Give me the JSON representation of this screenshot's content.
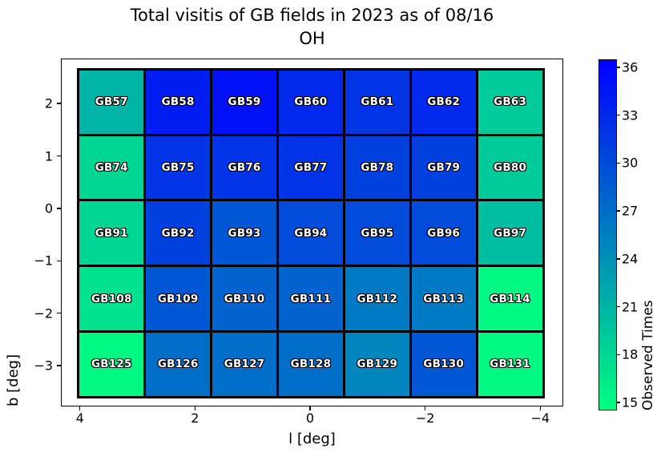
{
  "title": {
    "line1": "Total visitis of GB fields in 2023 as of 08/16",
    "line2": "OH"
  },
  "chart_data": {
    "type": "heatmap",
    "title": "Total visitis of GB fields in 2023 as of 08/16 OH",
    "xlabel": "l [deg]",
    "ylabel": "b [deg]",
    "colorbar_label": "Observed Times",
    "colormap": "winter_r",
    "vmin": 14.5,
    "vmax": 36.5,
    "accent_colors": {
      "cmap_top_blue": "#0000ff",
      "cmap_bottom_green": "#00ff80"
    },
    "xticks": [
      4,
      2,
      0,
      -2,
      -4
    ],
    "yticks": [
      2,
      1,
      0,
      -1,
      -2,
      -3
    ],
    "colorbar_ticks": [
      36,
      33,
      30,
      27,
      24,
      21,
      18,
      15
    ],
    "xlim": [
      4.33,
      -4.4
    ],
    "ylim": [
      2.86,
      -3.78
    ],
    "grid_extent": {
      "x": [
        4.04,
        -4.08
      ],
      "y": [
        2.67,
        -3.63
      ]
    },
    "legend_position": "right-colorbar",
    "grid": "off",
    "rows": [
      {
        "cells": [
          {
            "label": "GB57",
            "value": 21
          },
          {
            "label": "GB58",
            "value": 34
          },
          {
            "label": "GB59",
            "value": 35
          },
          {
            "label": "GB60",
            "value": 33
          },
          {
            "label": "GB61",
            "value": 32
          },
          {
            "label": "GB62",
            "value": 33
          },
          {
            "label": "GB63",
            "value": 19
          }
        ]
      },
      {
        "cells": [
          {
            "label": "GB74",
            "value": 18
          },
          {
            "label": "GB75",
            "value": 32
          },
          {
            "label": "GB76",
            "value": 32
          },
          {
            "label": "GB77",
            "value": 32
          },
          {
            "label": "GB78",
            "value": 31
          },
          {
            "label": "GB79",
            "value": 31
          },
          {
            "label": "GB80",
            "value": 19
          }
        ]
      },
      {
        "cells": [
          {
            "label": "GB91",
            "value": 18
          },
          {
            "label": "GB92",
            "value": 31
          },
          {
            "label": "GB93",
            "value": 29
          },
          {
            "label": "GB94",
            "value": 30
          },
          {
            "label": "GB95",
            "value": 30
          },
          {
            "label": "GB96",
            "value": 30
          },
          {
            "label": "GB97",
            "value": 20
          }
        ]
      },
      {
        "cells": [
          {
            "label": "GB108",
            "value": 17
          },
          {
            "label": "GB109",
            "value": 29
          },
          {
            "label": "GB110",
            "value": 28
          },
          {
            "label": "GB111",
            "value": 28
          },
          {
            "label": "GB112",
            "value": 26
          },
          {
            "label": "GB113",
            "value": 26
          },
          {
            "label": "GB114",
            "value": 15
          }
        ]
      },
      {
        "cells": [
          {
            "label": "GB125",
            "value": 15
          },
          {
            "label": "GB126",
            "value": 27
          },
          {
            "label": "GB127",
            "value": 27
          },
          {
            "label": "GB128",
            "value": 27
          },
          {
            "label": "GB129",
            "value": 25
          },
          {
            "label": "GB130",
            "value": 29
          },
          {
            "label": "GB131",
            "value": 15
          }
        ]
      }
    ]
  }
}
